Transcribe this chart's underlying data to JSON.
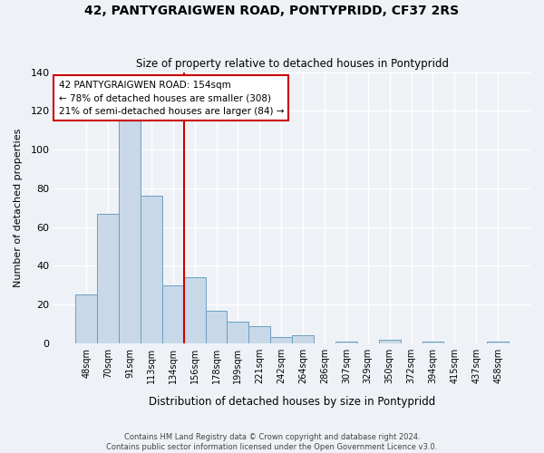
{
  "title": "42, PANTYGRAIGWEN ROAD, PONTYPRIDD, CF37 2RS",
  "subtitle": "Size of property relative to detached houses in Pontypridd",
  "xlabel": "Distribution of detached houses by size in Pontypridd",
  "ylabel": "Number of detached properties",
  "bin_labels": [
    "48sqm",
    "70sqm",
    "91sqm",
    "113sqm",
    "134sqm",
    "156sqm",
    "178sqm",
    "199sqm",
    "221sqm",
    "242sqm",
    "264sqm",
    "286sqm",
    "307sqm",
    "329sqm",
    "350sqm",
    "372sqm",
    "394sqm",
    "415sqm",
    "437sqm",
    "458sqm"
  ],
  "bar_heights": [
    25,
    67,
    118,
    76,
    30,
    34,
    17,
    11,
    9,
    3,
    4,
    0,
    1,
    0,
    2,
    0,
    1,
    0,
    0,
    1
  ],
  "bar_color": "#c8d8e8",
  "bar_edge_color": "#6a9fc0",
  "vline_x_index": 5,
  "vline_color": "#cc0000",
  "annotation_line1": "42 PANTYGRAIGWEN ROAD: 154sqm",
  "annotation_line2": "← 78% of detached houses are smaller (308)",
  "annotation_line3": "21% of semi-detached houses are larger (84) →",
  "annotation_box_color": "#ffffff",
  "annotation_box_edge": "#cc0000",
  "ylim": [
    0,
    140
  ],
  "yticks": [
    0,
    20,
    40,
    60,
    80,
    100,
    120,
    140
  ],
  "footer_line1": "Contains HM Land Registry data © Crown copyright and database right 2024.",
  "footer_line2": "Contains public sector information licensed under the Open Government Licence v3.0.",
  "background_color": "#eef2f7"
}
